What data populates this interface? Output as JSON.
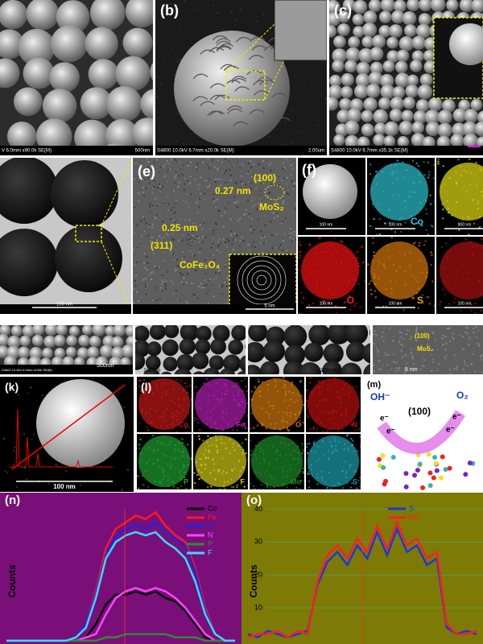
{
  "figure": {
    "a": {
      "info": "V 6.0mm x90.0k SE(M)",
      "scale": "500nm"
    },
    "b": {
      "label": "(b)",
      "info": "S4800 10.0kV 6.7mm x20.0k SE(M)",
      "scale": "2.00um"
    },
    "c": {
      "label": "(c)",
      "info": "S4800 10.0kV 6.7mm x35.1k SE(M)"
    },
    "d": {
      "scale": "100 nm"
    },
    "e": {
      "label": "(e)",
      "plane1": "(100)",
      "d1": "0.27 nm",
      "phase1": "MoS₂",
      "d2": "0.25 nm",
      "plane2": "(311)",
      "phase2": "CoFe₂O₄",
      "scale": "5 nm"
    },
    "f": {
      "label": "(f)",
      "maps": [
        "Co",
        "O",
        "S"
      ],
      "scale": "100 nm"
    },
    "g": {
      "info": "S4800 10.0kV 6.0mm x100k SE(M)",
      "scale": "500nm"
    },
    "h": {
      "scale": "100nm"
    },
    "i": {
      "scale": "100nm"
    },
    "j": {
      "plane": "(100)",
      "phase": "MoS₂",
      "scale": "5 nm"
    },
    "k": {
      "label": "(k)",
      "scale": "100 nm"
    },
    "l": {
      "label": "(l)",
      "maps": [
        "Co",
        "Fe",
        "O",
        "N",
        "P",
        "F",
        "Mo",
        "S"
      ]
    },
    "m": {
      "label": "(m)",
      "reactant": "OH⁻",
      "product": "O₂",
      "plane": "(100)",
      "electron": "e⁻"
    }
  },
  "chart_data": [
    {
      "type": "line",
      "label": "(n)",
      "ylabel": "Counts",
      "ylim": [
        -1,
        45
      ],
      "background": "#7a0f7a",
      "series": [
        {
          "name": "Co",
          "color": "#000000",
          "values": [
            0,
            0,
            0,
            0,
            0,
            0,
            0,
            0,
            1,
            5,
            11,
            14,
            14,
            15,
            14,
            15,
            13,
            12,
            9,
            5,
            1,
            0,
            0,
            0
          ]
        },
        {
          "name": "Fe",
          "color": "#ff1a1a",
          "values": [
            0,
            0,
            0,
            0,
            0,
            0,
            0,
            1,
            5,
            15,
            28,
            34,
            36,
            38,
            37,
            39,
            35,
            32,
            30,
            22,
            10,
            2,
            0,
            0
          ]
        },
        {
          "name": "O",
          "color": "#2222dd",
          "values": [
            0,
            0,
            0,
            0,
            0,
            0,
            0,
            1,
            5,
            14,
            26,
            32,
            34,
            35,
            34,
            36,
            33,
            31,
            29,
            21,
            9,
            2,
            0,
            0
          ]
        },
        {
          "name": "N",
          "color": "#ff44ff",
          "values": [
            0,
            0,
            0,
            0,
            0,
            0,
            0,
            0,
            1,
            2,
            8,
            13,
            15,
            16,
            15,
            16,
            15,
            13,
            10,
            6,
            2,
            0,
            0,
            0
          ]
        },
        {
          "name": "P",
          "color": "#2e8b2e",
          "values": [
            0,
            0,
            0,
            0,
            0,
            0,
            0,
            0,
            0,
            0,
            1,
            1,
            2,
            2,
            2,
            2,
            2,
            1,
            1,
            1,
            0,
            0,
            0,
            0
          ]
        },
        {
          "name": "F",
          "color": "#33ddff",
          "values": [
            0,
            0,
            0,
            0,
            0,
            0,
            0,
            1,
            4,
            13,
            25,
            30,
            32,
            33,
            32,
            33,
            30,
            28,
            25,
            18,
            8,
            2,
            0,
            0
          ]
        }
      ]
    },
    {
      "type": "line",
      "label": "(o)",
      "ylabel": "Counts",
      "ylim": [
        -1,
        45
      ],
      "yticks": [
        40,
        30,
        20,
        10
      ],
      "grid": true,
      "background": "#7d7a05",
      "series": [
        {
          "name": "S",
          "color": "#1a3ad6",
          "values": [
            2,
            1,
            3,
            2,
            1,
            2,
            3,
            17,
            24,
            27,
            23,
            29,
            25,
            33,
            26,
            34,
            27,
            29,
            23,
            25,
            4,
            2,
            3,
            2
          ]
        },
        {
          "name": "Mo",
          "color": "#ff2020",
          "values": [
            1,
            2,
            2,
            3,
            1,
            3,
            2,
            18,
            26,
            29,
            25,
            31,
            27,
            35,
            28,
            36,
            29,
            31,
            25,
            27,
            5,
            2,
            2,
            3
          ]
        }
      ]
    }
  ]
}
